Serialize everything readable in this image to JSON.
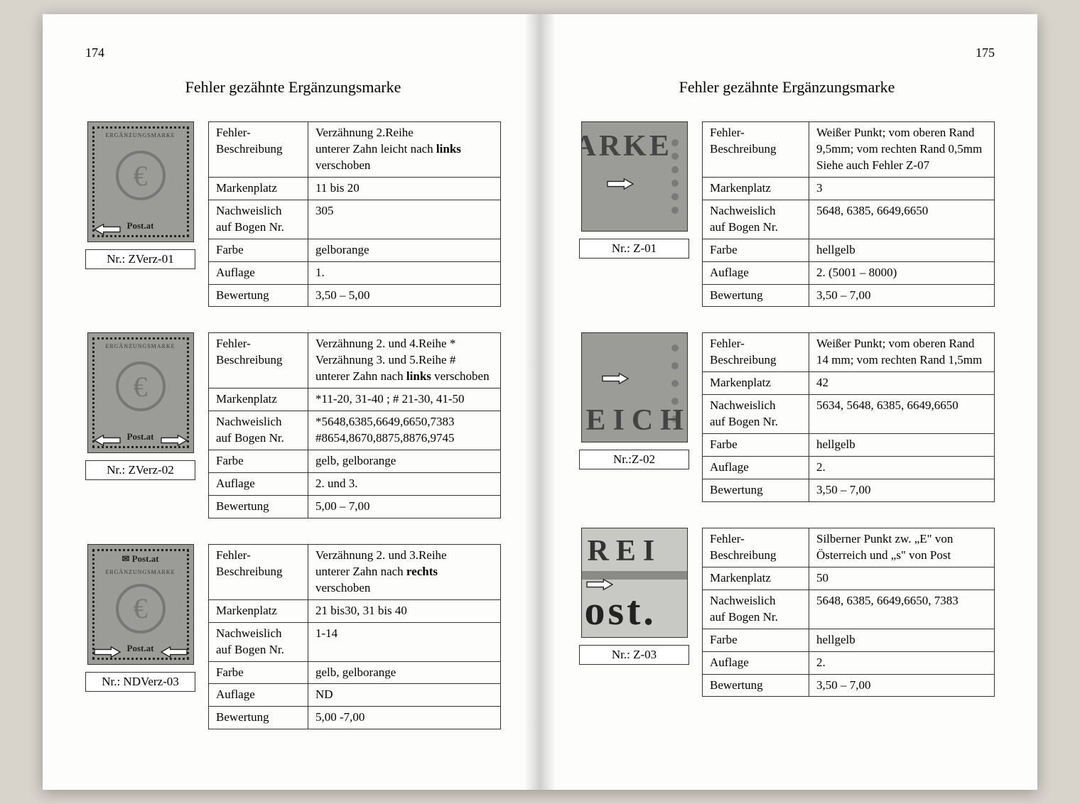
{
  "left": {
    "pageNumber": "174",
    "heading": "Fehler gezähnte Ergänzungsmarke",
    "entries": [
      {
        "nr": "Nr.: ZVerz-01",
        "rows": {
          "beschr_label": "Fehler-\nBeschreibung",
          "beschr": "Verzähnung 2.Reihe\nunterer Zahn leicht nach <b>links</b>\nverschoben",
          "markenplatz_label": "Markenplatz",
          "markenplatz": "11 bis 20",
          "nachw_label": "Nachweislich\nauf Bogen Nr.",
          "nachw": "305",
          "farbe_label": "Farbe",
          "farbe": "gelborange",
          "auflage_label": "Auflage",
          "auflage": "1.",
          "bewertung_label": "Bewertung",
          "bewertung": "3,50 – 5,00"
        }
      },
      {
        "nr": "Nr.: ZVerz-02",
        "rows": {
          "beschr_label": "Fehler-\nBeschreibung",
          "beschr": "Verzähnung 2. und 4.Reihe *\nVerzähnung 3. und 5.Reihe #\nunterer Zahn nach <b>links</b> verschoben",
          "markenplatz_label": "Markenplatz",
          "markenplatz": "*11-20, 31-40 ; # 21-30, 41-50",
          "nachw_label": "Nachweislich\nauf Bogen Nr.",
          "nachw": "*5648,6385,6649,6650,7383\n#8654,8670,8875,8876,9745",
          "farbe_label": "Farbe",
          "farbe": "gelb, gelborange",
          "auflage_label": "Auflage",
          "auflage": "2. und 3.",
          "bewertung_label": "Bewertung",
          "bewertung": "5,00 – 7,00"
        }
      },
      {
        "nr": "Nr.: NDVerz-03",
        "rows": {
          "beschr_label": "Fehler-\nBeschreibung",
          "beschr": "Verzähnung 2. und 3.Reihe\nunterer Zahn nach <b>rechts</b>\nverschoben",
          "markenplatz_label": "Markenplatz",
          "markenplatz": "21 bis30, 31 bis 40",
          "nachw_label": "Nachweislich\nauf Bogen Nr.",
          "nachw": "1-14",
          "farbe_label": "Farbe",
          "farbe": "gelb, gelborange",
          "auflage_label": "Auflage",
          "auflage": "ND",
          "bewertung_label": "Bewertung",
          "bewertung": "5,00 -7,00"
        }
      }
    ]
  },
  "right": {
    "pageNumber": "175",
    "heading": "Fehler gezähnte Ergänzungsmarke",
    "entries": [
      {
        "nr": "Nr.: Z-01",
        "rows": {
          "beschr_label": "Fehler-\nBeschreibung",
          "beschr": "Weißer Punkt; vom oberen Rand\n9,5mm; vom rechten Rand 0,5mm\nSiehe auch Fehler Z-07",
          "markenplatz_label": "Markenplatz",
          "markenplatz": "3",
          "nachw_label": "Nachweislich\nauf Bogen Nr.",
          "nachw": "5648, 6385, 6649,6650",
          "farbe_label": "Farbe",
          "farbe": "hellgelb",
          "auflage_label": "Auflage",
          "auflage": "2. (5001 – 8000)",
          "bewertung_label": "Bewertung",
          "bewertung": "3,50 – 7,00"
        }
      },
      {
        "nr": "Nr.:Z-02",
        "rows": {
          "beschr_label": "Fehler-\nBeschreibung",
          "beschr": "Weißer Punkt; vom oberen Rand\n14 mm; vom rechten Rand 1,5mm",
          "markenplatz_label": "Markenplatz",
          "markenplatz": "42",
          "nachw_label": "Nachweislich\nauf Bogen Nr.",
          "nachw": "5634, 5648, 6385, 6649,6650",
          "farbe_label": "Farbe",
          "farbe": "hellgelb",
          "auflage_label": "Auflage",
          "auflage": "2.",
          "bewertung_label": "Bewertung",
          "bewertung": "3,50 – 7,00"
        }
      },
      {
        "nr": "Nr.: Z-03",
        "rows": {
          "beschr_label": "Fehler-\nBeschreibung",
          "beschr": "Silberner Punkt zw. „E\" von\nÖsterreich und „s\" von Post",
          "markenplatz_label": "Markenplatz",
          "markenplatz": "50",
          "nachw_label": "Nachweislich\nauf Bogen Nr.",
          "nachw": "5648, 6385, 6649,6650, 7383",
          "farbe_label": "Farbe",
          "farbe": "hellgelb",
          "auflage_label": "Auflage",
          "auflage": "2.",
          "bewertung_label": "Bewertung",
          "bewertung": "3,50 – 7,00"
        }
      }
    ]
  }
}
